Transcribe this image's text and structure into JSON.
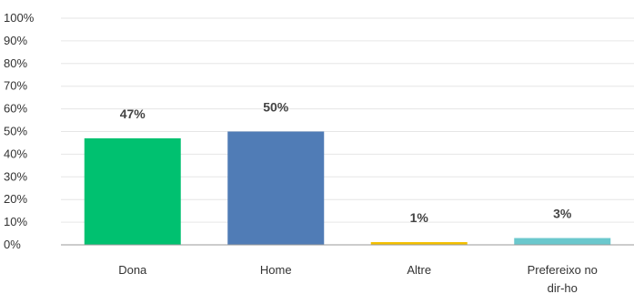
{
  "chart_data": {
    "type": "bar",
    "categories": [
      [
        "Dona"
      ],
      [
        "Home"
      ],
      [
        "Altre"
      ],
      [
        "Prefereixo no",
        "dir-ho"
      ]
    ],
    "values": [
      47,
      50,
      1,
      3
    ],
    "value_labels": [
      "47%",
      "50%",
      "1%",
      "3%"
    ],
    "colors": [
      "#00c170",
      "#507cb6",
      "#f4c000",
      "#6bc8cd"
    ],
    "ylim": [
      0,
      100
    ],
    "yticks": [
      0,
      10,
      20,
      30,
      40,
      50,
      60,
      70,
      80,
      90,
      100
    ],
    "ytick_labels": [
      "0%",
      "10%",
      "20%",
      "30%",
      "40%",
      "50%",
      "60%",
      "70%",
      "80%",
      "90%",
      "100%"
    ],
    "grid": true,
    "title": "",
    "xlabel": "",
    "ylabel": ""
  }
}
